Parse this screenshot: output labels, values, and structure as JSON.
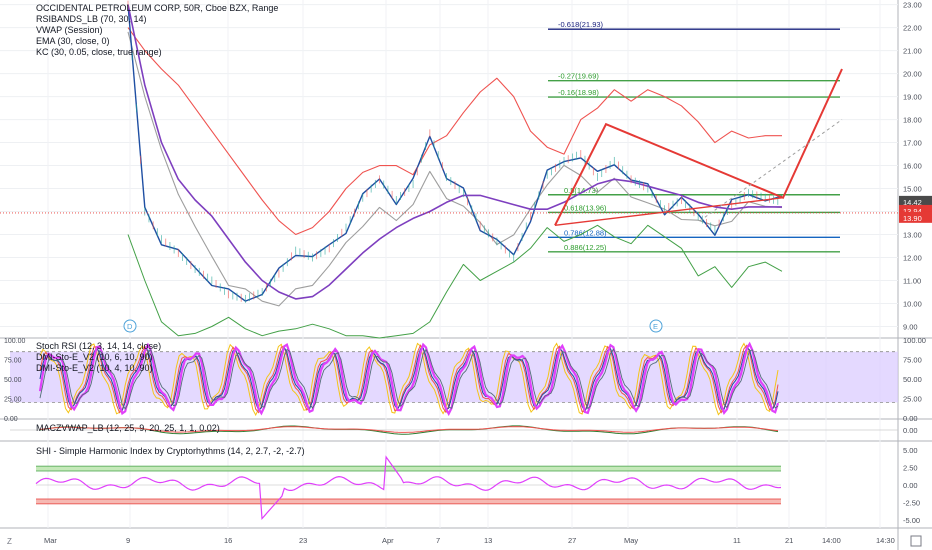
{
  "main_panel": {
    "title": "OCCIDENTAL PETROLEUM CORP, 50R, Cboe BZX, Range",
    "indicators": [
      "RSIBANDS_LB (70, 30, 14)",
      "VWAP (Session)",
      "EMA (30, close, 0)",
      "KC (30, 0.05, close, true range)"
    ],
    "price_labels": [
      {
        "value": "14.42",
        "color": "#4a4a4a"
      },
      {
        "value": "13.94",
        "color": "#e53935"
      },
      {
        "value": "13.90",
        "color": "#e53935"
      }
    ],
    "fib_labels": [
      {
        "text": "-0.618(21.93)",
        "color": "#1a237e"
      },
      {
        "text": "-0.27(19.69)",
        "color": "#2e9d2e"
      },
      {
        "text": "-0.16(18.98)",
        "color": "#2e9d2e"
      },
      {
        "text": "0.5(14.73)",
        "color": "#2e9d2e"
      },
      {
        "text": "0.618(13.96)",
        "color": "#2e9d2e"
      },
      {
        "text": "0.786(12.88)",
        "color": "#1565c0"
      },
      {
        "text": "0.886(12.25)",
        "color": "#2e9d2e"
      }
    ],
    "event_markers": [
      "D",
      "E"
    ],
    "colors": {
      "blue_price": "#1f4fa3",
      "vwap": "#7e3fbf",
      "ema_red": "#ef5350",
      "upper_green": "#43a047",
      "gray": "#9e9e9e",
      "pattern_red": "#e53935"
    }
  },
  "stoch_panel": {
    "legend": [
      "Stoch RSI (12, 3, 14, 14, close)",
      "DMI-Sto-E_V2 (10, 6, 10, 90)",
      "DMI-Sto-E_V2 (10, 4, 10, 90)"
    ],
    "band_color": "#d9c9ff"
  },
  "macd_panel": {
    "legend": "MACZVWAP_LB (12, 25, 9, 20, 25, 1, 1, 0.02)"
  },
  "shi_panel": {
    "legend": "SHI - Simple Harmonic Index by Cryptorhythms (14, 2, 2.7, -2, -2.7)"
  },
  "chart_data": [
    {
      "type": "line",
      "title": "OCCIDENTAL PETROLEUM CORP, 50R, Cboe BZX, Range",
      "y_ticks": [
        "23.00",
        "22.00",
        "21.00",
        "20.00",
        "19.00",
        "18.00",
        "17.00",
        "16.00",
        "15.00",
        "14.00",
        "13.00",
        "12.00",
        "11.00",
        "10.00",
        "9.00"
      ],
      "ylim": [
        8.5,
        23.2
      ],
      "x_ticks": [
        "Mar",
        "9",
        "16",
        "23",
        "Apr",
        "7",
        "13",
        "27",
        "May",
        "11",
        "21",
        "14:00",
        "14:30"
      ],
      "fib_levels": [
        21.93,
        19.69,
        18.98,
        14.73,
        13.96,
        12.88,
        12.25
      ],
      "last_price": 14.42,
      "series": [
        {
          "values": [
            23.0,
            14.0,
            12.8,
            12.2,
            11.5,
            11.0,
            10.4,
            10.2,
            10.5,
            11.3,
            12.3,
            12.0,
            12.4,
            13.3,
            14.6,
            15.4,
            14.5,
            15.2,
            17.4,
            15.5,
            14.8,
            13.4,
            12.7,
            12.0,
            13.8,
            15.6,
            16.2,
            16.5,
            15.5,
            16.2,
            15.4,
            15.0,
            14.1,
            14.5,
            13.8,
            13.2,
            14.3,
            14.8,
            14.6,
            14.42
          ]
        },
        {
          "values": [
            23.0,
            19.5,
            17.0,
            15.4,
            14.5,
            13.8,
            12.8,
            11.8,
            11.0,
            10.5,
            10.2,
            10.3,
            10.8,
            11.5,
            12.2,
            12.8,
            13.3,
            13.7,
            14.0,
            14.4,
            14.7,
            14.7,
            14.5,
            14.3,
            14.1,
            14.1,
            14.4,
            14.8,
            15.2,
            15.4,
            15.3,
            15.1,
            14.9,
            14.7,
            14.4,
            14.2,
            14.1,
            14.2,
            14.2,
            14.2
          ]
        },
        {
          "values": [
            22.0,
            21.0,
            20.2,
            19.5,
            18.5,
            17.5,
            16.5,
            15.5,
            14.5,
            13.6,
            13.0,
            13.3,
            14.0,
            15.0,
            15.7,
            16.0,
            16.0,
            15.6,
            16.9,
            17.3,
            18.3,
            19.2,
            19.8,
            19.0,
            17.5,
            16.8,
            16.5,
            18.0,
            18.5,
            19.3,
            18.8,
            19.3,
            19.0,
            18.6,
            17.9,
            17.0,
            17.5,
            17.2,
            17.3,
            17.3
          ]
        },
        {
          "values": [
            13.0,
            11.0,
            9.2,
            8.6,
            8.7,
            9.0,
            9.4,
            8.9,
            8.6,
            8.8,
            8.9,
            9.1,
            8.9,
            8.6,
            8.6,
            8.5,
            8.6,
            8.7,
            9.2,
            10.5,
            11.7,
            11.0,
            11.4,
            11.8,
            12.4,
            13.3,
            12.7,
            13.0,
            13.4,
            12.9,
            12.6,
            13.4,
            12.9,
            12.4,
            11.2,
            11.6,
            10.7,
            11.6,
            11.8,
            11.4
          ]
        },
        {
          "values": [
            22.0,
            19.0,
            16.5,
            15.0,
            13.2,
            12.0,
            11.0,
            10.4,
            10.2,
            10.0,
            10.4,
            11.0,
            11.6,
            12.5,
            13.6,
            14.0,
            13.6,
            14.5,
            15.5,
            14.7,
            14.3,
            13.3,
            12.8,
            12.9,
            14.0,
            15.4,
            15.8,
            15.6,
            15.0,
            15.2,
            14.8,
            14.4,
            13.9,
            13.9,
            13.5,
            13.3,
            13.8,
            14.2,
            14.3,
            14.3
          ]
        }
      ]
    },
    {
      "type": "line",
      "title": "Stoch RSI (12, 3, 14, 14, close)",
      "y_ticks": [
        "100.00",
        "75.00",
        "50.00",
        "25.00",
        "0.00"
      ],
      "ylim": [
        0,
        100
      ],
      "bands": [
        20,
        85
      ]
    },
    {
      "type": "line",
      "title": "MACZVWAP_LB (12, 25, 9, 20, 25, 1, 1, 0.02)",
      "y_ticks": [
        "0.00"
      ]
    },
    {
      "type": "line",
      "title": "SHI - Simple Harmonic Index by Cryptorhythms (14, 2, 2.7, -2, -2.7)",
      "y_ticks": [
        "5.00",
        "2.50",
        "0.00",
        "-2.50",
        "-5.00"
      ],
      "ylim": [
        -6,
        6
      ],
      "bands": [
        2,
        2.7,
        -2,
        -2.7
      ]
    }
  ]
}
